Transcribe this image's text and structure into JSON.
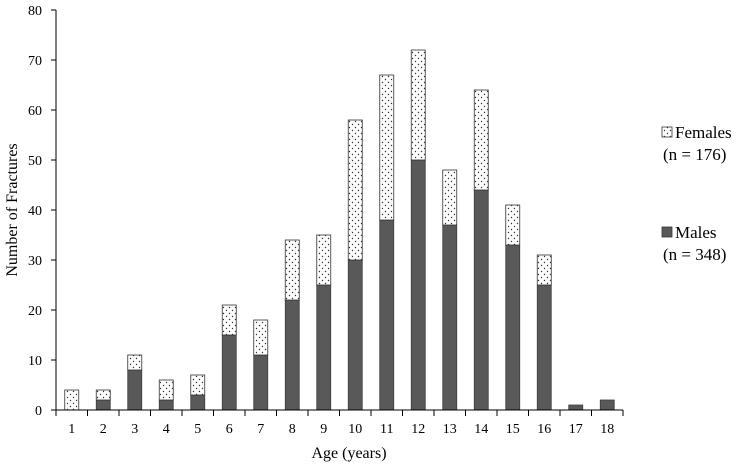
{
  "chart_data": {
    "type": "bar",
    "stacked": true,
    "categories": [
      "1",
      "2",
      "3",
      "4",
      "5",
      "6",
      "7",
      "8",
      "9",
      "10",
      "11",
      "12",
      "13",
      "14",
      "15",
      "16",
      "17",
      "18"
    ],
    "series": [
      {
        "name": "Males",
        "legend_lines": [
          "Males",
          "(n = 348)"
        ],
        "color": "#595959",
        "pattern": "solid",
        "values": [
          0,
          2,
          8,
          2,
          3,
          15,
          11,
          22,
          25,
          30,
          38,
          50,
          37,
          44,
          33,
          25,
          1,
          2
        ]
      },
      {
        "name": "Females",
        "legend_lines": [
          "Females",
          "(n = 176)"
        ],
        "color": "#ffffff",
        "pattern": "dots",
        "values": [
          4,
          2,
          3,
          4,
          4,
          6,
          7,
          12,
          10,
          28,
          29,
          22,
          11,
          20,
          8,
          6,
          0,
          0
        ]
      }
    ],
    "xlabel": "Age (years)",
    "ylabel": "Number of Fractures",
    "ylim": [
      0,
      80
    ],
    "yticks": [
      0,
      10,
      20,
      30,
      40,
      50,
      60,
      70,
      80
    ],
    "grid": false,
    "legend": "right"
  }
}
